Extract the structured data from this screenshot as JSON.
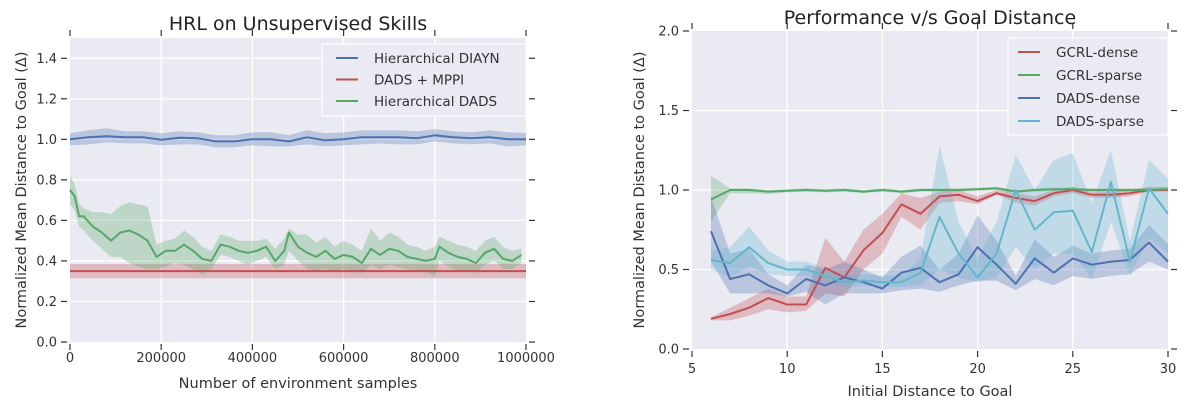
{
  "chart_data": [
    {
      "type": "line",
      "title": "HRL on Unsupervised Skills",
      "xlabel": "Number of environment samples",
      "ylabel": "Normalized Mean Distance to Goal (Δ)",
      "xlim": [
        0,
        1000000
      ],
      "ylim": [
        0,
        1.5
      ],
      "xticks": [
        0,
        200000,
        400000,
        600000,
        800000,
        1000000
      ],
      "xtick_labels": [
        "0",
        "200000",
        "400000",
        "600000",
        "800000",
        "1000000"
      ],
      "yticks": [
        0.0,
        0.2,
        0.4,
        0.6,
        0.8,
        1.0,
        1.2,
        1.4
      ],
      "ytick_labels": [
        "0.0",
        "0.2",
        "0.4",
        "0.6",
        "0.8",
        "1.0",
        "1.2",
        "1.4"
      ],
      "grid": true,
      "legend_position": "top-right",
      "x": [
        0,
        40000,
        80000,
        120000,
        160000,
        200000,
        240000,
        280000,
        320000,
        360000,
        400000,
        440000,
        480000,
        520000,
        560000,
        600000,
        640000,
        680000,
        720000,
        760000,
        800000,
        840000,
        880000,
        920000,
        960000,
        1000000
      ],
      "series": [
        {
          "name": "Hierarchical DIAYN",
          "color": "#4c72b0",
          "values": [
            1.0,
            1.01,
            1.015,
            1.01,
            1.01,
            0.998,
            1.008,
            1.005,
            0.99,
            0.99,
            1.0,
            1.0,
            0.99,
            1.01,
            0.995,
            1.0,
            1.01,
            1.01,
            1.01,
            1.005,
            1.02,
            1.01,
            1.005,
            1.01,
            1.0,
            1.0
          ],
          "lower": [
            0.97,
            0.975,
            0.985,
            0.98,
            0.98,
            0.97,
            0.975,
            0.975,
            0.96,
            0.96,
            0.97,
            0.965,
            0.965,
            0.975,
            0.965,
            0.97,
            0.975,
            0.98,
            0.975,
            0.975,
            0.99,
            0.98,
            0.975,
            0.98,
            0.965,
            0.97
          ],
          "upper": [
            1.03,
            1.045,
            1.055,
            1.04,
            1.04,
            1.03,
            1.04,
            1.035,
            1.02,
            1.02,
            1.035,
            1.035,
            1.02,
            1.045,
            1.03,
            1.035,
            1.045,
            1.045,
            1.045,
            1.04,
            1.05,
            1.04,
            1.035,
            1.045,
            1.035,
            1.03
          ]
        },
        {
          "name": "DADS + MPPI",
          "color": "#c44e52",
          "values": [
            0.35,
            0.35,
            0.35,
            0.35,
            0.35,
            0.35,
            0.35,
            0.35,
            0.35,
            0.35,
            0.35,
            0.35,
            0.35,
            0.35,
            0.35,
            0.35,
            0.35,
            0.35,
            0.35,
            0.35,
            0.35,
            0.35,
            0.35,
            0.35,
            0.35,
            0.35
          ],
          "lower": [
            0.315,
            0.315,
            0.315,
            0.315,
            0.315,
            0.315,
            0.315,
            0.315,
            0.315,
            0.315,
            0.315,
            0.315,
            0.315,
            0.315,
            0.315,
            0.315,
            0.315,
            0.315,
            0.315,
            0.315,
            0.315,
            0.315,
            0.315,
            0.315,
            0.315,
            0.315
          ],
          "upper": [
            0.385,
            0.385,
            0.385,
            0.385,
            0.385,
            0.385,
            0.385,
            0.385,
            0.385,
            0.385,
            0.385,
            0.385,
            0.385,
            0.385,
            0.385,
            0.385,
            0.385,
            0.385,
            0.385,
            0.385,
            0.385,
            0.385,
            0.385,
            0.385,
            0.385,
            0.385
          ]
        },
        {
          "name": "Hierarchical DADS",
          "color": "#55a868",
          "x": [
            0,
            10000,
            20000,
            30000,
            50000,
            70000,
            90000,
            110000,
            130000,
            150000,
            170000,
            190000,
            210000,
            230000,
            250000,
            270000,
            290000,
            310000,
            330000,
            350000,
            370000,
            390000,
            410000,
            430000,
            450000,
            470000,
            480000,
            500000,
            520000,
            540000,
            560000,
            580000,
            600000,
            620000,
            640000,
            660000,
            680000,
            700000,
            720000,
            740000,
            760000,
            780000,
            800000,
            810000,
            830000,
            850000,
            870000,
            890000,
            910000,
            930000,
            950000,
            970000,
            990000
          ],
          "values": [
            0.75,
            0.72,
            0.62,
            0.62,
            0.57,
            0.54,
            0.5,
            0.54,
            0.55,
            0.53,
            0.5,
            0.42,
            0.45,
            0.45,
            0.48,
            0.45,
            0.41,
            0.4,
            0.48,
            0.47,
            0.45,
            0.44,
            0.45,
            0.47,
            0.4,
            0.45,
            0.54,
            0.47,
            0.44,
            0.42,
            0.45,
            0.41,
            0.43,
            0.42,
            0.39,
            0.46,
            0.43,
            0.46,
            0.45,
            0.42,
            0.41,
            0.4,
            0.41,
            0.47,
            0.44,
            0.42,
            0.41,
            0.39,
            0.44,
            0.46,
            0.41,
            0.4,
            0.43
          ],
          "lower": [
            0.68,
            0.65,
            0.57,
            0.55,
            0.5,
            0.46,
            0.42,
            0.42,
            0.39,
            0.37,
            0.36,
            0.36,
            0.37,
            0.39,
            0.38,
            0.36,
            0.33,
            0.36,
            0.43,
            0.42,
            0.4,
            0.38,
            0.4,
            0.42,
            0.36,
            0.38,
            0.45,
            0.4,
            0.36,
            0.35,
            0.36,
            0.35,
            0.36,
            0.35,
            0.34,
            0.38,
            0.36,
            0.38,
            0.37,
            0.36,
            0.35,
            0.35,
            0.32,
            0.4,
            0.37,
            0.35,
            0.35,
            0.34,
            0.38,
            0.4,
            0.36,
            0.36,
            0.39
          ],
          "upper": [
            0.82,
            0.78,
            0.68,
            0.66,
            0.64,
            0.64,
            0.63,
            0.67,
            0.69,
            0.68,
            0.67,
            0.48,
            0.5,
            0.51,
            0.55,
            0.52,
            0.47,
            0.45,
            0.53,
            0.52,
            0.5,
            0.5,
            0.5,
            0.51,
            0.46,
            0.51,
            0.56,
            0.53,
            0.53,
            0.49,
            0.52,
            0.47,
            0.5,
            0.48,
            0.45,
            0.56,
            0.5,
            0.54,
            0.52,
            0.48,
            0.47,
            0.45,
            0.47,
            0.52,
            0.5,
            0.48,
            0.47,
            0.45,
            0.5,
            0.52,
            0.47,
            0.45,
            0.46
          ]
        }
      ]
    },
    {
      "type": "line",
      "title": "Performance v/s Goal Distance",
      "xlabel": "Initial Distance to Goal",
      "ylabel": "Normalized Mean Distance to Goal (Δ)",
      "xlim": [
        5,
        30
      ],
      "ylim": [
        0,
        2.0
      ],
      "xticks": [
        5,
        10,
        15,
        20,
        25,
        30
      ],
      "xtick_labels": [
        "5",
        "10",
        "15",
        "20",
        "25",
        "30"
      ],
      "yticks": [
        0.0,
        0.5,
        1.0,
        1.5,
        2.0
      ],
      "ytick_labels": [
        "0.0",
        "0.5",
        "1.0",
        "1.5",
        "2.0"
      ],
      "grid": true,
      "legend_position": "top-right",
      "x": [
        6,
        7,
        8,
        9,
        10,
        11,
        12,
        13,
        14,
        15,
        16,
        17,
        18,
        19,
        20,
        21,
        22,
        23,
        24,
        25,
        26,
        27,
        28,
        29,
        30
      ],
      "series": [
        {
          "name": "GCRL-dense",
          "color": "#c44e52",
          "values": [
            0.19,
            0.22,
            0.26,
            0.32,
            0.28,
            0.28,
            0.51,
            0.45,
            0.62,
            0.73,
            0.91,
            0.85,
            0.96,
            0.97,
            0.93,
            0.98,
            0.95,
            0.93,
            0.98,
            1.0,
            0.97,
            0.97,
            0.98,
            1.0,
            1.0
          ],
          "lower": [
            0.18,
            0.18,
            0.21,
            0.25,
            0.23,
            0.24,
            0.35,
            0.33,
            0.5,
            0.6,
            0.83,
            0.75,
            0.92,
            0.93,
            0.91,
            0.97,
            0.92,
            0.9,
            0.96,
            0.98,
            0.95,
            0.95,
            0.96,
            0.99,
            0.99
          ],
          "lower_note": "",
          "upper": [
            0.2,
            0.26,
            0.32,
            0.38,
            0.33,
            0.33,
            0.7,
            0.55,
            0.75,
            0.85,
            0.98,
            0.95,
            0.99,
            1.0,
            0.96,
            1.0,
            0.98,
            0.96,
            1.0,
            1.02,
            0.99,
            0.99,
            1.0,
            1.02,
            1.02
          ]
        },
        {
          "name": "GCRL-sparse",
          "color": "#55a868",
          "values": [
            0.94,
            1.0,
            1.0,
            0.99,
            0.995,
            1.0,
            0.995,
            1.0,
            0.99,
            1.0,
            0.99,
            1.0,
            1.0,
            1.0,
            1.005,
            1.01,
            0.99,
            1.0,
            1.005,
            1.005,
            1.0,
            1.0,
            1.0,
            1.0,
            1.005
          ],
          "lower": [
            0.8,
            0.98,
            0.98,
            0.975,
            0.985,
            0.99,
            0.985,
            0.99,
            0.98,
            0.99,
            0.98,
            0.99,
            0.99,
            0.99,
            0.995,
            1.0,
            0.98,
            0.99,
            0.995,
            0.995,
            0.99,
            0.99,
            0.99,
            0.99,
            0.995
          ],
          "upper": [
            1.09,
            1.01,
            1.01,
            1.0,
            1.005,
            1.01,
            1.005,
            1.01,
            1.0,
            1.01,
            1.0,
            1.01,
            1.01,
            1.01,
            1.015,
            1.02,
            1.0,
            1.01,
            1.015,
            1.015,
            1.01,
            1.01,
            1.01,
            1.01,
            1.015
          ]
        },
        {
          "name": "DADS-dense",
          "color": "#4c72b0",
          "values": [
            0.74,
            0.44,
            0.47,
            0.4,
            0.35,
            0.44,
            0.4,
            0.45,
            0.42,
            0.38,
            0.48,
            0.51,
            0.42,
            0.47,
            0.64,
            0.53,
            0.41,
            0.57,
            0.48,
            0.57,
            0.53,
            0.55,
            0.56,
            0.67,
            0.55
          ],
          "lower": [
            0.55,
            0.35,
            0.35,
            0.35,
            0.33,
            0.36,
            0.28,
            0.35,
            0.35,
            0.35,
            0.37,
            0.38,
            0.36,
            0.4,
            0.43,
            0.43,
            0.37,
            0.44,
            0.4,
            0.46,
            0.44,
            0.46,
            0.47,
            0.55,
            0.5
          ],
          "upper": [
            0.96,
            0.6,
            0.63,
            0.47,
            0.4,
            0.53,
            0.5,
            0.55,
            0.5,
            0.45,
            0.58,
            0.65,
            0.5,
            0.6,
            0.84,
            0.68,
            0.46,
            0.69,
            0.58,
            0.65,
            0.6,
            0.62,
            0.63,
            0.78,
            0.66
          ]
        },
        {
          "name": "DADS-sparse",
          "color": "#64b5cd",
          "values": [
            0.56,
            0.54,
            0.64,
            0.54,
            0.5,
            0.5,
            0.46,
            0.42,
            0.43,
            0.42,
            0.42,
            0.48,
            0.83,
            0.6,
            0.45,
            0.6,
            1.0,
            0.75,
            0.86,
            0.87,
            0.61,
            1.05,
            0.55,
            1.01,
            0.85
          ],
          "lower": [
            0.5,
            0.45,
            0.52,
            0.47,
            0.46,
            0.46,
            0.42,
            0.39,
            0.4,
            0.39,
            0.39,
            0.4,
            0.5,
            0.45,
            0.42,
            0.45,
            0.64,
            0.5,
            0.6,
            0.6,
            0.44,
            0.8,
            0.46,
            0.7,
            0.6
          ],
          "upper": [
            0.62,
            0.64,
            0.77,
            0.62,
            0.55,
            0.55,
            0.51,
            0.46,
            0.47,
            0.46,
            0.46,
            0.57,
            1.28,
            0.8,
            0.57,
            0.8,
            1.22,
            1.0,
            1.19,
            1.23,
            0.92,
            1.25,
            0.68,
            1.19,
            1.07
          ]
        }
      ]
    }
  ]
}
